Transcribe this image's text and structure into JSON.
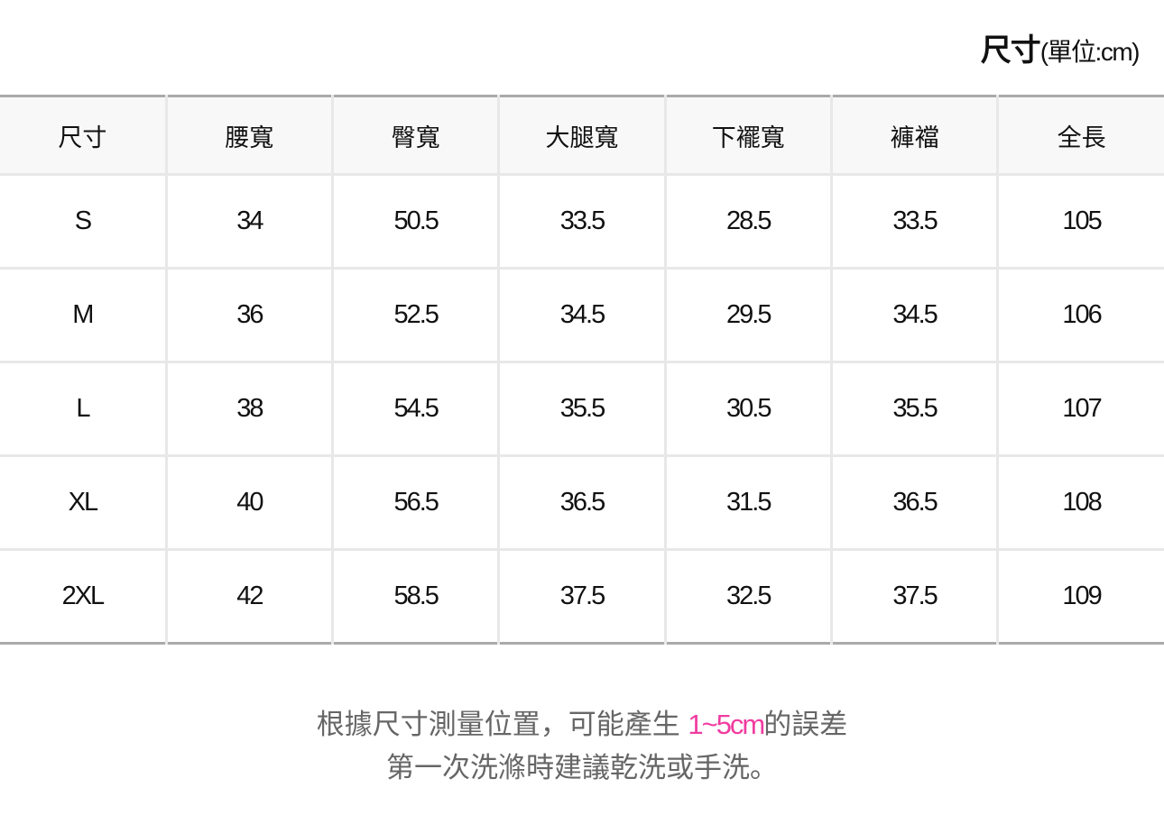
{
  "title": {
    "main": "尺寸",
    "unit": "(單位:cm)"
  },
  "table": {
    "headers": [
      "尺寸",
      "腰寬",
      "臀寬",
      "大腿寬",
      "下襬寬",
      "褲襠",
      "全長"
    ],
    "rows": [
      [
        "S",
        "34",
        "50.5",
        "33.5",
        "28.5",
        "33.5",
        "105"
      ],
      [
        "M",
        "36",
        "52.5",
        "34.5",
        "29.5",
        "34.5",
        "106"
      ],
      [
        "L",
        "38",
        "54.5",
        "35.5",
        "30.5",
        "35.5",
        "107"
      ],
      [
        "XL",
        "40",
        "56.5",
        "36.5",
        "31.5",
        "36.5",
        "108"
      ],
      [
        "2XL",
        "42",
        "58.5",
        "37.5",
        "32.5",
        "37.5",
        "109"
      ]
    ]
  },
  "note": {
    "line1_pre": "根據尺寸測量位置，可能產生 ",
    "line1_highlight": "1~5cm",
    "line1_post": "的誤差",
    "line2": "第一次洗滌時建議乾洗或手洗。",
    "highlight_color": "#f03ca0"
  }
}
